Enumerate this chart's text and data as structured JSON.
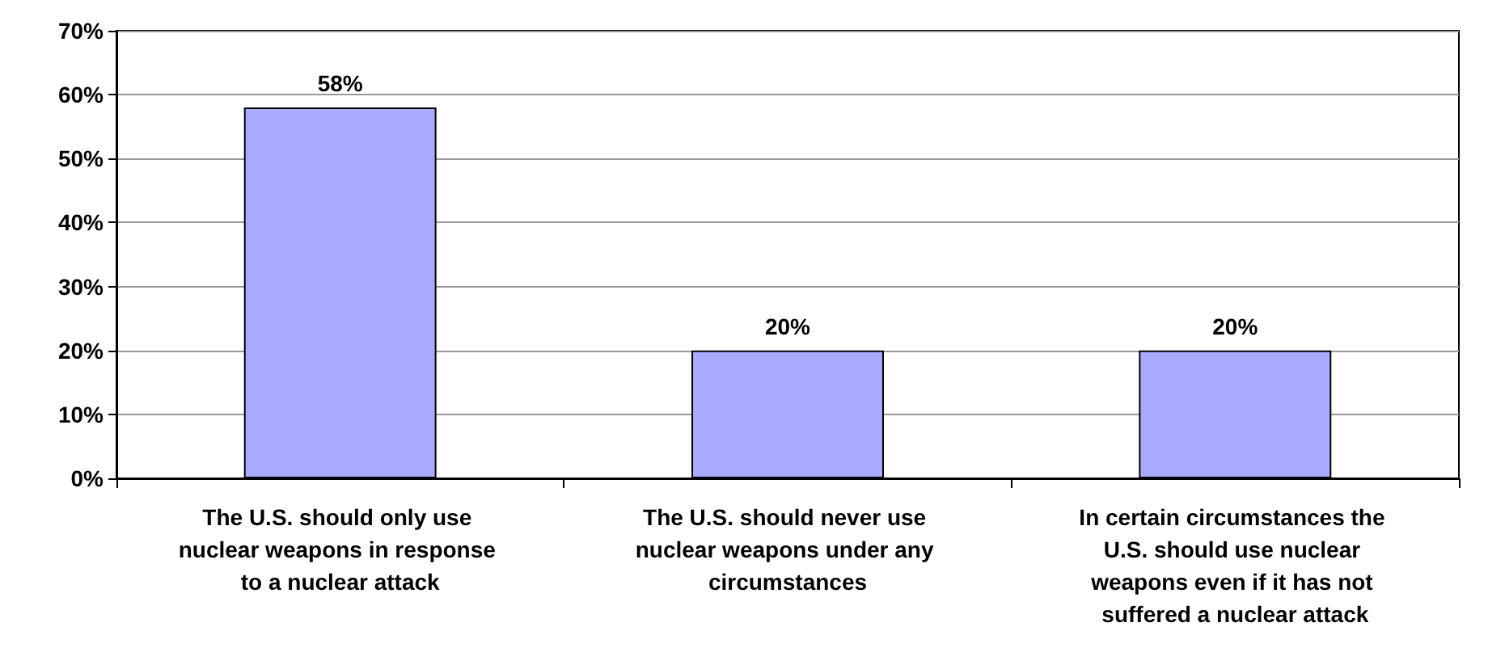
{
  "chart_data": {
    "type": "bar",
    "categories": [
      "The U.S. should only use nuclear weapons in response to a nuclear attack",
      "The U.S. should never use nuclear weapons under any circumstances",
      "In certain circumstances the U.S. should use nuclear weapons even if it has not suffered a nuclear attack"
    ],
    "values": [
      58,
      20,
      20
    ],
    "value_labels": [
      "58%",
      "20%",
      "20%"
    ],
    "color": "#aaaaff",
    "ylim": [
      0,
      70
    ],
    "yticks": [
      {
        "value": 0,
        "label": "0%"
      },
      {
        "value": 10,
        "label": "10%"
      },
      {
        "value": 20,
        "label": "20%"
      },
      {
        "value": 30,
        "label": "30%"
      },
      {
        "value": 40,
        "label": "40%"
      },
      {
        "value": 50,
        "label": "50%"
      },
      {
        "value": 60,
        "label": "60%"
      },
      {
        "value": 70,
        "label": "70%"
      }
    ],
    "grid": "y"
  }
}
